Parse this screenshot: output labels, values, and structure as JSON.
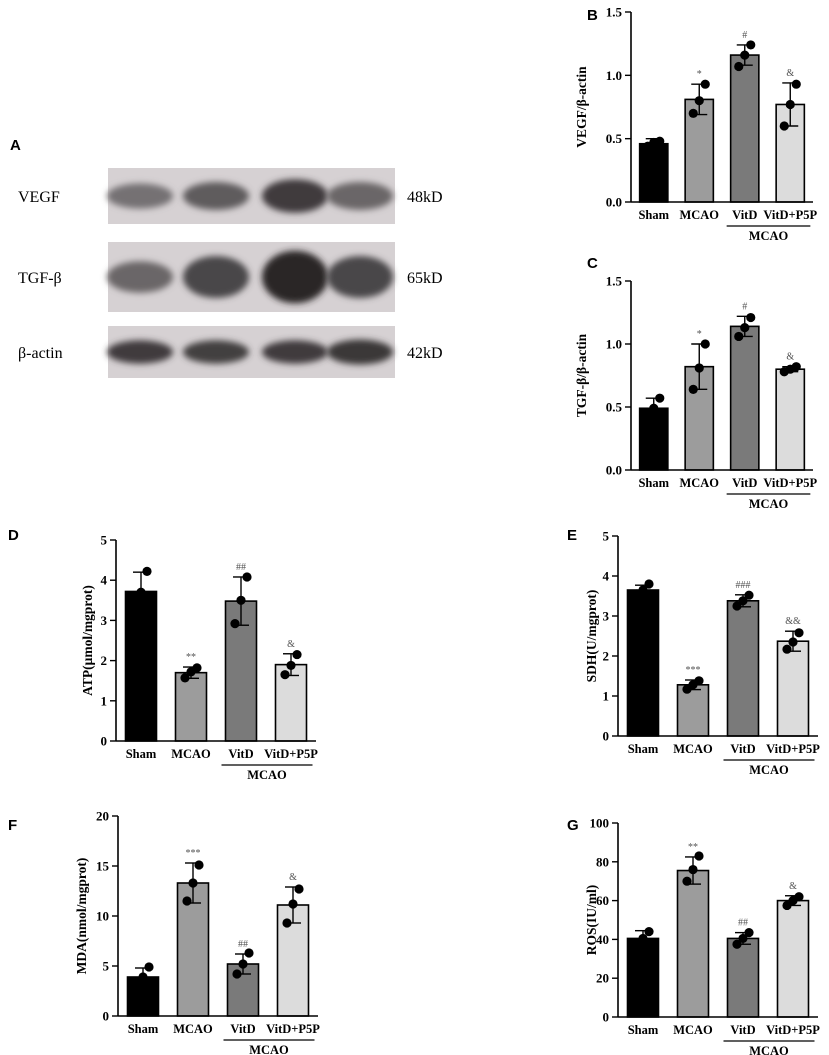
{
  "western_blot": {
    "panel_letter": "A",
    "rows": [
      {
        "protein": "VEGF",
        "size": "48kD",
        "band_darkness": [
          0.55,
          0.65,
          0.8,
          0.6
        ],
        "band_thickness": [
          0.45,
          0.5,
          0.6,
          0.5
        ]
      },
      {
        "protein": "TGF-β",
        "size": "65kD",
        "band_darkness": [
          0.6,
          0.75,
          0.9,
          0.75
        ],
        "band_thickness": [
          0.45,
          0.6,
          0.75,
          0.6
        ]
      },
      {
        "protein": "β-actin",
        "size": "42kD",
        "band_darkness": [
          0.8,
          0.78,
          0.8,
          0.82
        ],
        "band_thickness": [
          0.45,
          0.45,
          0.45,
          0.48
        ]
      }
    ]
  },
  "chart_data": [
    {
      "panel": "B",
      "type": "bar",
      "ylabel": "VEGF/β-actin",
      "ylim": [
        0,
        1.5
      ],
      "yticks": [
        "0.0",
        "0.5",
        "1.0",
        "1.5"
      ],
      "categories": [
        "Sham",
        "MCAO",
        "VitD",
        "VitD+P5P"
      ],
      "group_label": "MCAO",
      "values": [
        0.46,
        0.81,
        1.16,
        0.77
      ],
      "errors": [
        0.04,
        0.12,
        0.08,
        0.17
      ],
      "points": [
        [
          0.44,
          0.47,
          0.48
        ],
        [
          0.7,
          0.8,
          0.93
        ],
        [
          1.07,
          1.16,
          1.24
        ],
        [
          0.6,
          0.77,
          0.93
        ]
      ],
      "significance": [
        "",
        "*",
        "#",
        "&"
      ],
      "bar_colors": [
        "#000000",
        "#9c9c9c",
        "#7a7a7a",
        "#dcdcdc"
      ]
    },
    {
      "panel": "C",
      "type": "bar",
      "ylabel": "TGF-β/β-actin",
      "ylim": [
        0,
        1.5
      ],
      "yticks": [
        "0.0",
        "0.5",
        "1.0",
        "1.5"
      ],
      "categories": [
        "Sham",
        "MCAO",
        "VitD",
        "VitD+P5P"
      ],
      "group_label": "MCAO",
      "values": [
        0.49,
        0.82,
        1.14,
        0.8
      ],
      "errors": [
        0.08,
        0.18,
        0.08,
        0.02
      ],
      "points": [
        [
          0.43,
          0.49,
          0.57
        ],
        [
          0.64,
          0.81,
          1.0
        ],
        [
          1.06,
          1.13,
          1.21
        ],
        [
          0.78,
          0.8,
          0.82
        ]
      ],
      "significance": [
        "",
        "*",
        "#",
        "&"
      ],
      "bar_colors": [
        "#000000",
        "#9c9c9c",
        "#7a7a7a",
        "#dcdcdc"
      ]
    },
    {
      "panel": "D",
      "type": "bar",
      "ylabel": "ATP(μmol/mgprot)",
      "ylim": [
        0,
        5
      ],
      "yticks": [
        "0",
        "1",
        "2",
        "3",
        "4",
        "5"
      ],
      "categories": [
        "Sham",
        "MCAO",
        "VitD",
        "VitD+P5P"
      ],
      "group_label": "MCAO",
      "values": [
        3.72,
        1.7,
        3.48,
        1.9
      ],
      "errors": [
        0.48,
        0.14,
        0.6,
        0.27
      ],
      "points": [
        [
          3.25,
          3.7,
          4.22
        ],
        [
          1.57,
          1.72,
          1.82
        ],
        [
          2.92,
          3.5,
          4.08
        ],
        [
          1.65,
          1.88,
          2.15
        ]
      ],
      "significance": [
        "",
        "**",
        "##",
        "&"
      ],
      "bar_colors": [
        "#000000",
        "#9c9c9c",
        "#7a7a7a",
        "#dcdcdc"
      ]
    },
    {
      "panel": "E",
      "type": "bar",
      "ylabel": "SDH(U/mgprot)",
      "ylim": [
        0,
        5
      ],
      "yticks": [
        "0",
        "1",
        "2",
        "3",
        "4",
        "5"
      ],
      "categories": [
        "Sham",
        "MCAO",
        "VitD",
        "VitD+P5P"
      ],
      "group_label": "MCAO",
      "values": [
        3.65,
        1.28,
        3.38,
        2.37
      ],
      "errors": [
        0.12,
        0.12,
        0.15,
        0.25
      ],
      "points": [
        [
          3.55,
          3.65,
          3.8
        ],
        [
          1.17,
          1.28,
          1.38
        ],
        [
          3.25,
          3.38,
          3.52
        ],
        [
          2.17,
          2.35,
          2.58
        ]
      ],
      "significance": [
        "",
        "***",
        "###",
        "&&"
      ],
      "bar_colors": [
        "#000000",
        "#9c9c9c",
        "#7a7a7a",
        "#dcdcdc"
      ]
    },
    {
      "panel": "F",
      "type": "bar",
      "ylabel": "MDA(nmol/mgprot)",
      "ylim": [
        0,
        20
      ],
      "yticks": [
        "0",
        "5",
        "10",
        "15",
        "20"
      ],
      "categories": [
        "Sham",
        "MCAO",
        "VitD",
        "VitD+P5P"
      ],
      "group_label": "MCAO",
      "values": [
        3.9,
        13.3,
        5.2,
        11.1
      ],
      "errors": [
        0.9,
        2.0,
        1.0,
        1.8
      ],
      "points": [
        [
          3.0,
          3.9,
          4.9
        ],
        [
          11.5,
          13.3,
          15.1
        ],
        [
          4.2,
          5.2,
          6.3
        ],
        [
          9.3,
          11.2,
          12.7
        ]
      ],
      "significance": [
        "",
        "***",
        "##",
        "&"
      ],
      "bar_colors": [
        "#000000",
        "#9c9c9c",
        "#7a7a7a",
        "#dcdcdc"
      ]
    },
    {
      "panel": "G",
      "type": "bar",
      "ylabel": "ROS(IU/ml)",
      "ylim": [
        0,
        100
      ],
      "yticks": [
        "0",
        "20",
        "40",
        "60",
        "80",
        "100"
      ],
      "categories": [
        "Sham",
        "MCAO",
        "VitD",
        "VitD+P5P"
      ],
      "group_label": "MCAO",
      "values": [
        40.5,
        75.5,
        40.5,
        60
      ],
      "errors": [
        4,
        7,
        3,
        2.5
      ],
      "points": [
        [
          38,
          40.5,
          44
        ],
        [
          70,
          76,
          83
        ],
        [
          37.5,
          40.5,
          43.5
        ],
        [
          57.5,
          60,
          62
        ]
      ],
      "significance": [
        "",
        "**",
        "##",
        "&"
      ],
      "bar_colors": [
        "#000000",
        "#9c9c9c",
        "#7a7a7a",
        "#dcdcdc"
      ]
    }
  ]
}
